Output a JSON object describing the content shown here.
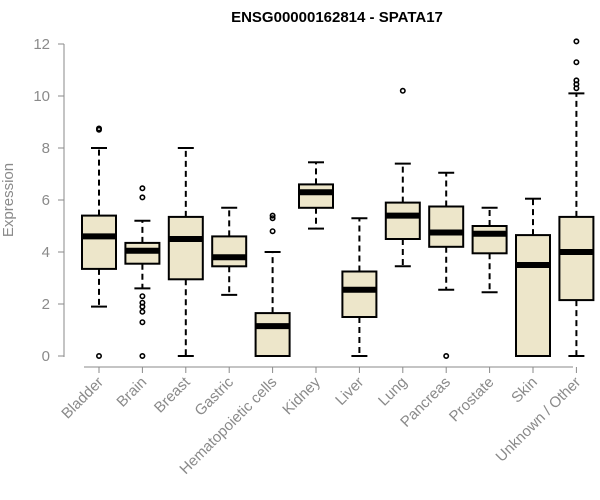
{
  "chart_data": {
    "type": "boxplot",
    "title": "ENSG00000162814 - SPATA17",
    "xlabel": "",
    "ylabel": "Expression",
    "ylim": [
      0,
      12
    ],
    "yticks": [
      0,
      2,
      4,
      6,
      8,
      10,
      12
    ],
    "box_fill": "#ede6ca",
    "categories": [
      "Bladder",
      "Brain",
      "Breast",
      "Gastric",
      "Hematopoietic cells",
      "Kidney",
      "Liver",
      "Lung",
      "Pancreas",
      "Prostate",
      "Skin",
      "Unknown / Other"
    ],
    "boxes": [
      {
        "category": "Bladder",
        "whisker_low": 1.9,
        "q1": 3.35,
        "median": 4.6,
        "q3": 5.4,
        "whisker_high": 8.0,
        "outliers": [
          0.0,
          8.7,
          8.75
        ]
      },
      {
        "category": "Brain",
        "whisker_low": 2.6,
        "q1": 3.55,
        "median": 4.05,
        "q3": 4.35,
        "whisker_high": 5.2,
        "outliers": [
          0.0,
          1.3,
          1.7,
          1.9,
          2.05,
          2.3,
          6.1,
          6.45
        ]
      },
      {
        "category": "Breast",
        "whisker_low": 0.0,
        "q1": 2.95,
        "median": 4.5,
        "q3": 5.35,
        "whisker_high": 8.0,
        "outliers": []
      },
      {
        "category": "Gastric",
        "whisker_low": 2.35,
        "q1": 3.45,
        "median": 3.8,
        "q3": 4.6,
        "whisker_high": 5.7,
        "outliers": []
      },
      {
        "category": "Hematopoietic cells",
        "whisker_low": 0.0,
        "q1": 0.0,
        "median": 1.15,
        "q3": 1.65,
        "whisker_high": 4.0,
        "outliers": [
          4.8,
          5.3,
          5.4
        ]
      },
      {
        "category": "Kidney",
        "whisker_low": 4.9,
        "q1": 5.7,
        "median": 6.3,
        "q3": 6.6,
        "whisker_high": 7.45,
        "outliers": []
      },
      {
        "category": "Liver",
        "whisker_low": 0.0,
        "q1": 1.5,
        "median": 2.55,
        "q3": 3.25,
        "whisker_high": 5.3,
        "outliers": []
      },
      {
        "category": "Lung",
        "whisker_low": 3.45,
        "q1": 4.5,
        "median": 5.4,
        "q3": 5.9,
        "whisker_high": 7.4,
        "outliers": [
          10.2
        ]
      },
      {
        "category": "Pancreas",
        "whisker_low": 2.55,
        "q1": 4.2,
        "median": 4.75,
        "q3": 5.75,
        "whisker_high": 7.05,
        "outliers": [
          0.0
        ]
      },
      {
        "category": "Prostate",
        "whisker_low": 2.45,
        "q1": 3.95,
        "median": 4.7,
        "q3": 5.0,
        "whisker_high": 5.7,
        "outliers": []
      },
      {
        "category": "Skin",
        "whisker_low": 0.0,
        "q1": 0.0,
        "median": 3.5,
        "q3": 4.65,
        "whisker_high": 6.05,
        "outliers": []
      },
      {
        "category": "Unknown / Other",
        "whisker_low": 0.0,
        "q1": 2.15,
        "median": 4.0,
        "q3": 5.35,
        "whisker_high": 10.1,
        "outliers": [
          10.3,
          10.45,
          10.6,
          11.3,
          12.1
        ]
      }
    ]
  }
}
